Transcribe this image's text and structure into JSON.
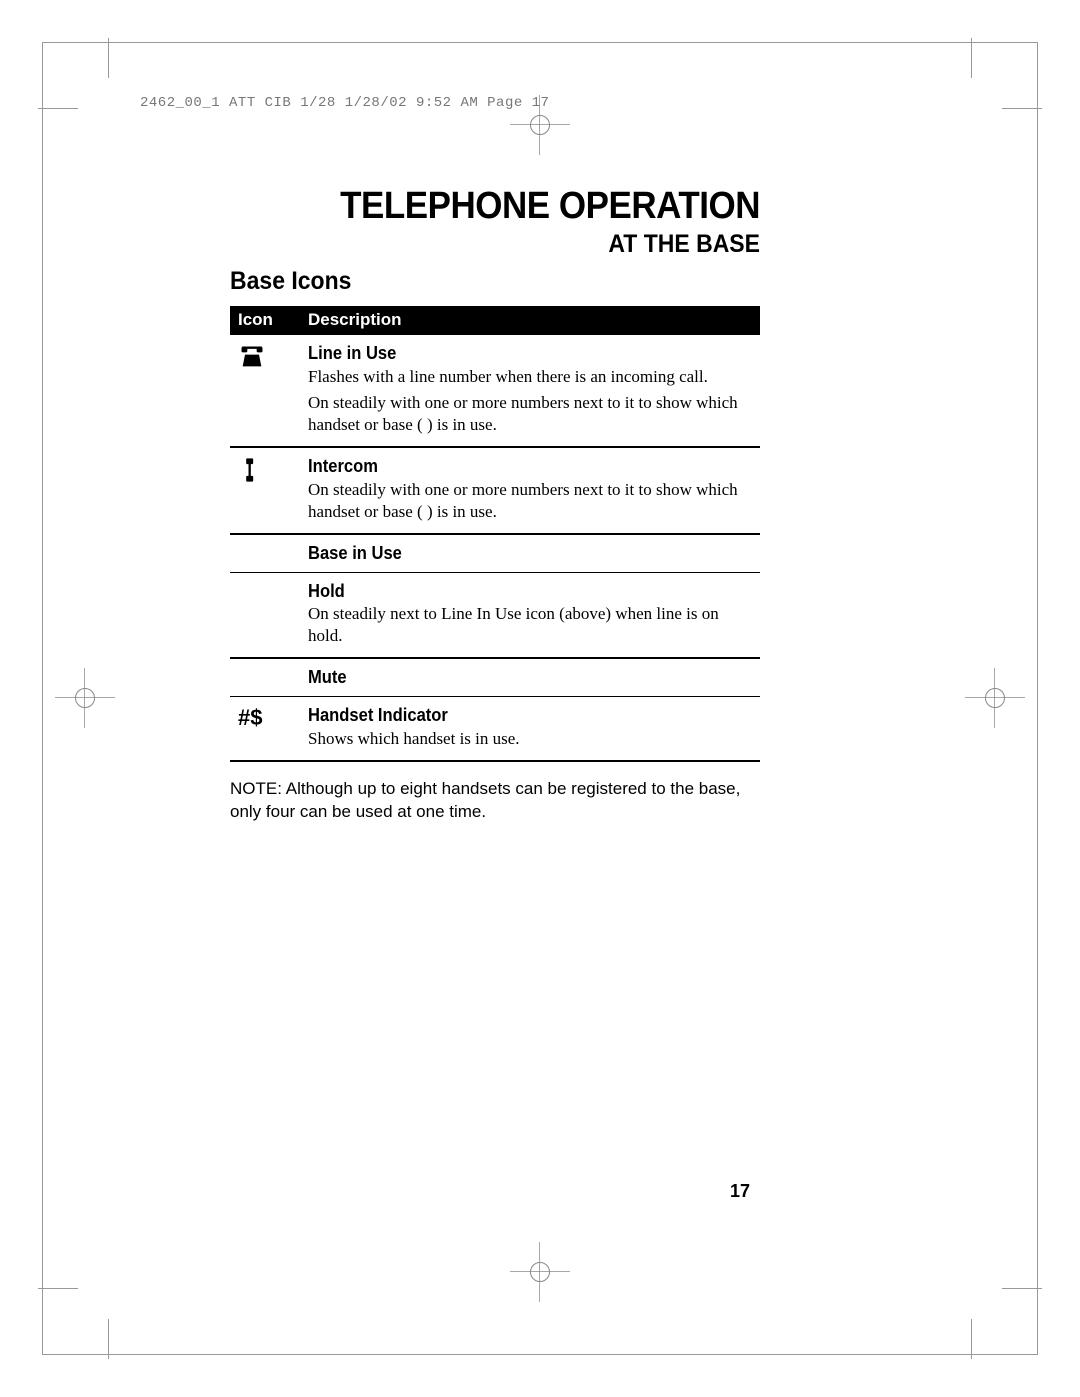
{
  "header_meta": "2462_00_1 ATT CIB 1/28  1/28/02  9:52 AM  Page 17",
  "title": "TELEPHONE OPERATION",
  "subtitle": "AT THE BASE",
  "section_heading": "Base Icons",
  "table": {
    "col_icon": "Icon",
    "col_desc": "Description"
  },
  "rows": [
    {
      "icon_name": "line-in-use-icon",
      "icon_glyph": "svg-phone-double",
      "label": "Line in Use",
      "desc": [
        "Flashes with a line number when there is an incoming call.",
        "On steadily with one or more numbers next to it to show which handset or base (  ) is in use."
      ],
      "rule": "thick"
    },
    {
      "icon_name": "intercom-icon",
      "icon_glyph": "svg-handset",
      "label": "Intercom",
      "desc": [
        "On steadily with one or more numbers next to it to show which handset or base (  ) is in use."
      ],
      "rule": "thick"
    },
    {
      "icon_name": "base-in-use-icon",
      "icon_glyph": "",
      "label": "Base in Use",
      "desc": [],
      "rule": "thin"
    },
    {
      "icon_name": "hold-icon",
      "icon_glyph": "",
      "label": "Hold",
      "desc": [
        "On steadily next to Line In Use icon (above) when line is on hold."
      ],
      "rule": "thick"
    },
    {
      "icon_name": "mute-icon",
      "icon_glyph": "",
      "label": "Mute",
      "desc": [],
      "rule": "thin"
    },
    {
      "icon_name": "handset-indicator-icon",
      "icon_glyph": "text-hashdollar",
      "label": "Handset Indicator",
      "desc": [
        "Shows which handset is in use."
      ],
      "rule": "thick"
    }
  ],
  "note": "NOTE: Although up to eight handsets can be registered to the base, only four can be used at one time.",
  "page_number": "17",
  "colors": {
    "text": "#000000",
    "bg": "#ffffff",
    "header_bg": "#000000",
    "header_text": "#ffffff",
    "meta_text": "#777777",
    "crop_mark": "#999999"
  }
}
